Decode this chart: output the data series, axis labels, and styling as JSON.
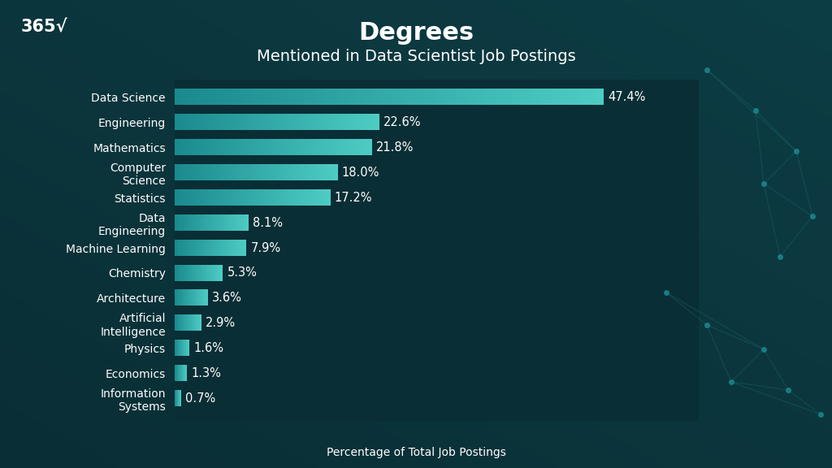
{
  "title": "Degrees",
  "subtitle": "Mentioned in Data Scientist Job Postings",
  "xlabel": "Percentage of Total Job Postings",
  "logo_text": "365√",
  "categories": [
    "Data Science",
    "Engineering",
    "Mathematics",
    "Computer\nScience",
    "Statistics",
    "Data\nEngineering",
    "Machine Learning",
    "Chemistry",
    "Architecture",
    "Artificial\nIntelligence",
    "Physics",
    "Economics",
    "Information\nSystems"
  ],
  "values": [
    47.4,
    22.6,
    21.8,
    18.0,
    17.2,
    8.1,
    7.9,
    5.3,
    3.6,
    2.9,
    1.6,
    1.3,
    0.7
  ],
  "bar_color_light": "#4ecdc4",
  "bar_color_dark": "#1a8a8f",
  "background_color": "#0a2e35",
  "background_color2": "#0d3d45",
  "text_color": "#ffffff",
  "title_fontsize": 22,
  "subtitle_fontsize": 14,
  "label_fontsize": 10,
  "value_fontsize": 10.5,
  "xlabel_fontsize": 10
}
